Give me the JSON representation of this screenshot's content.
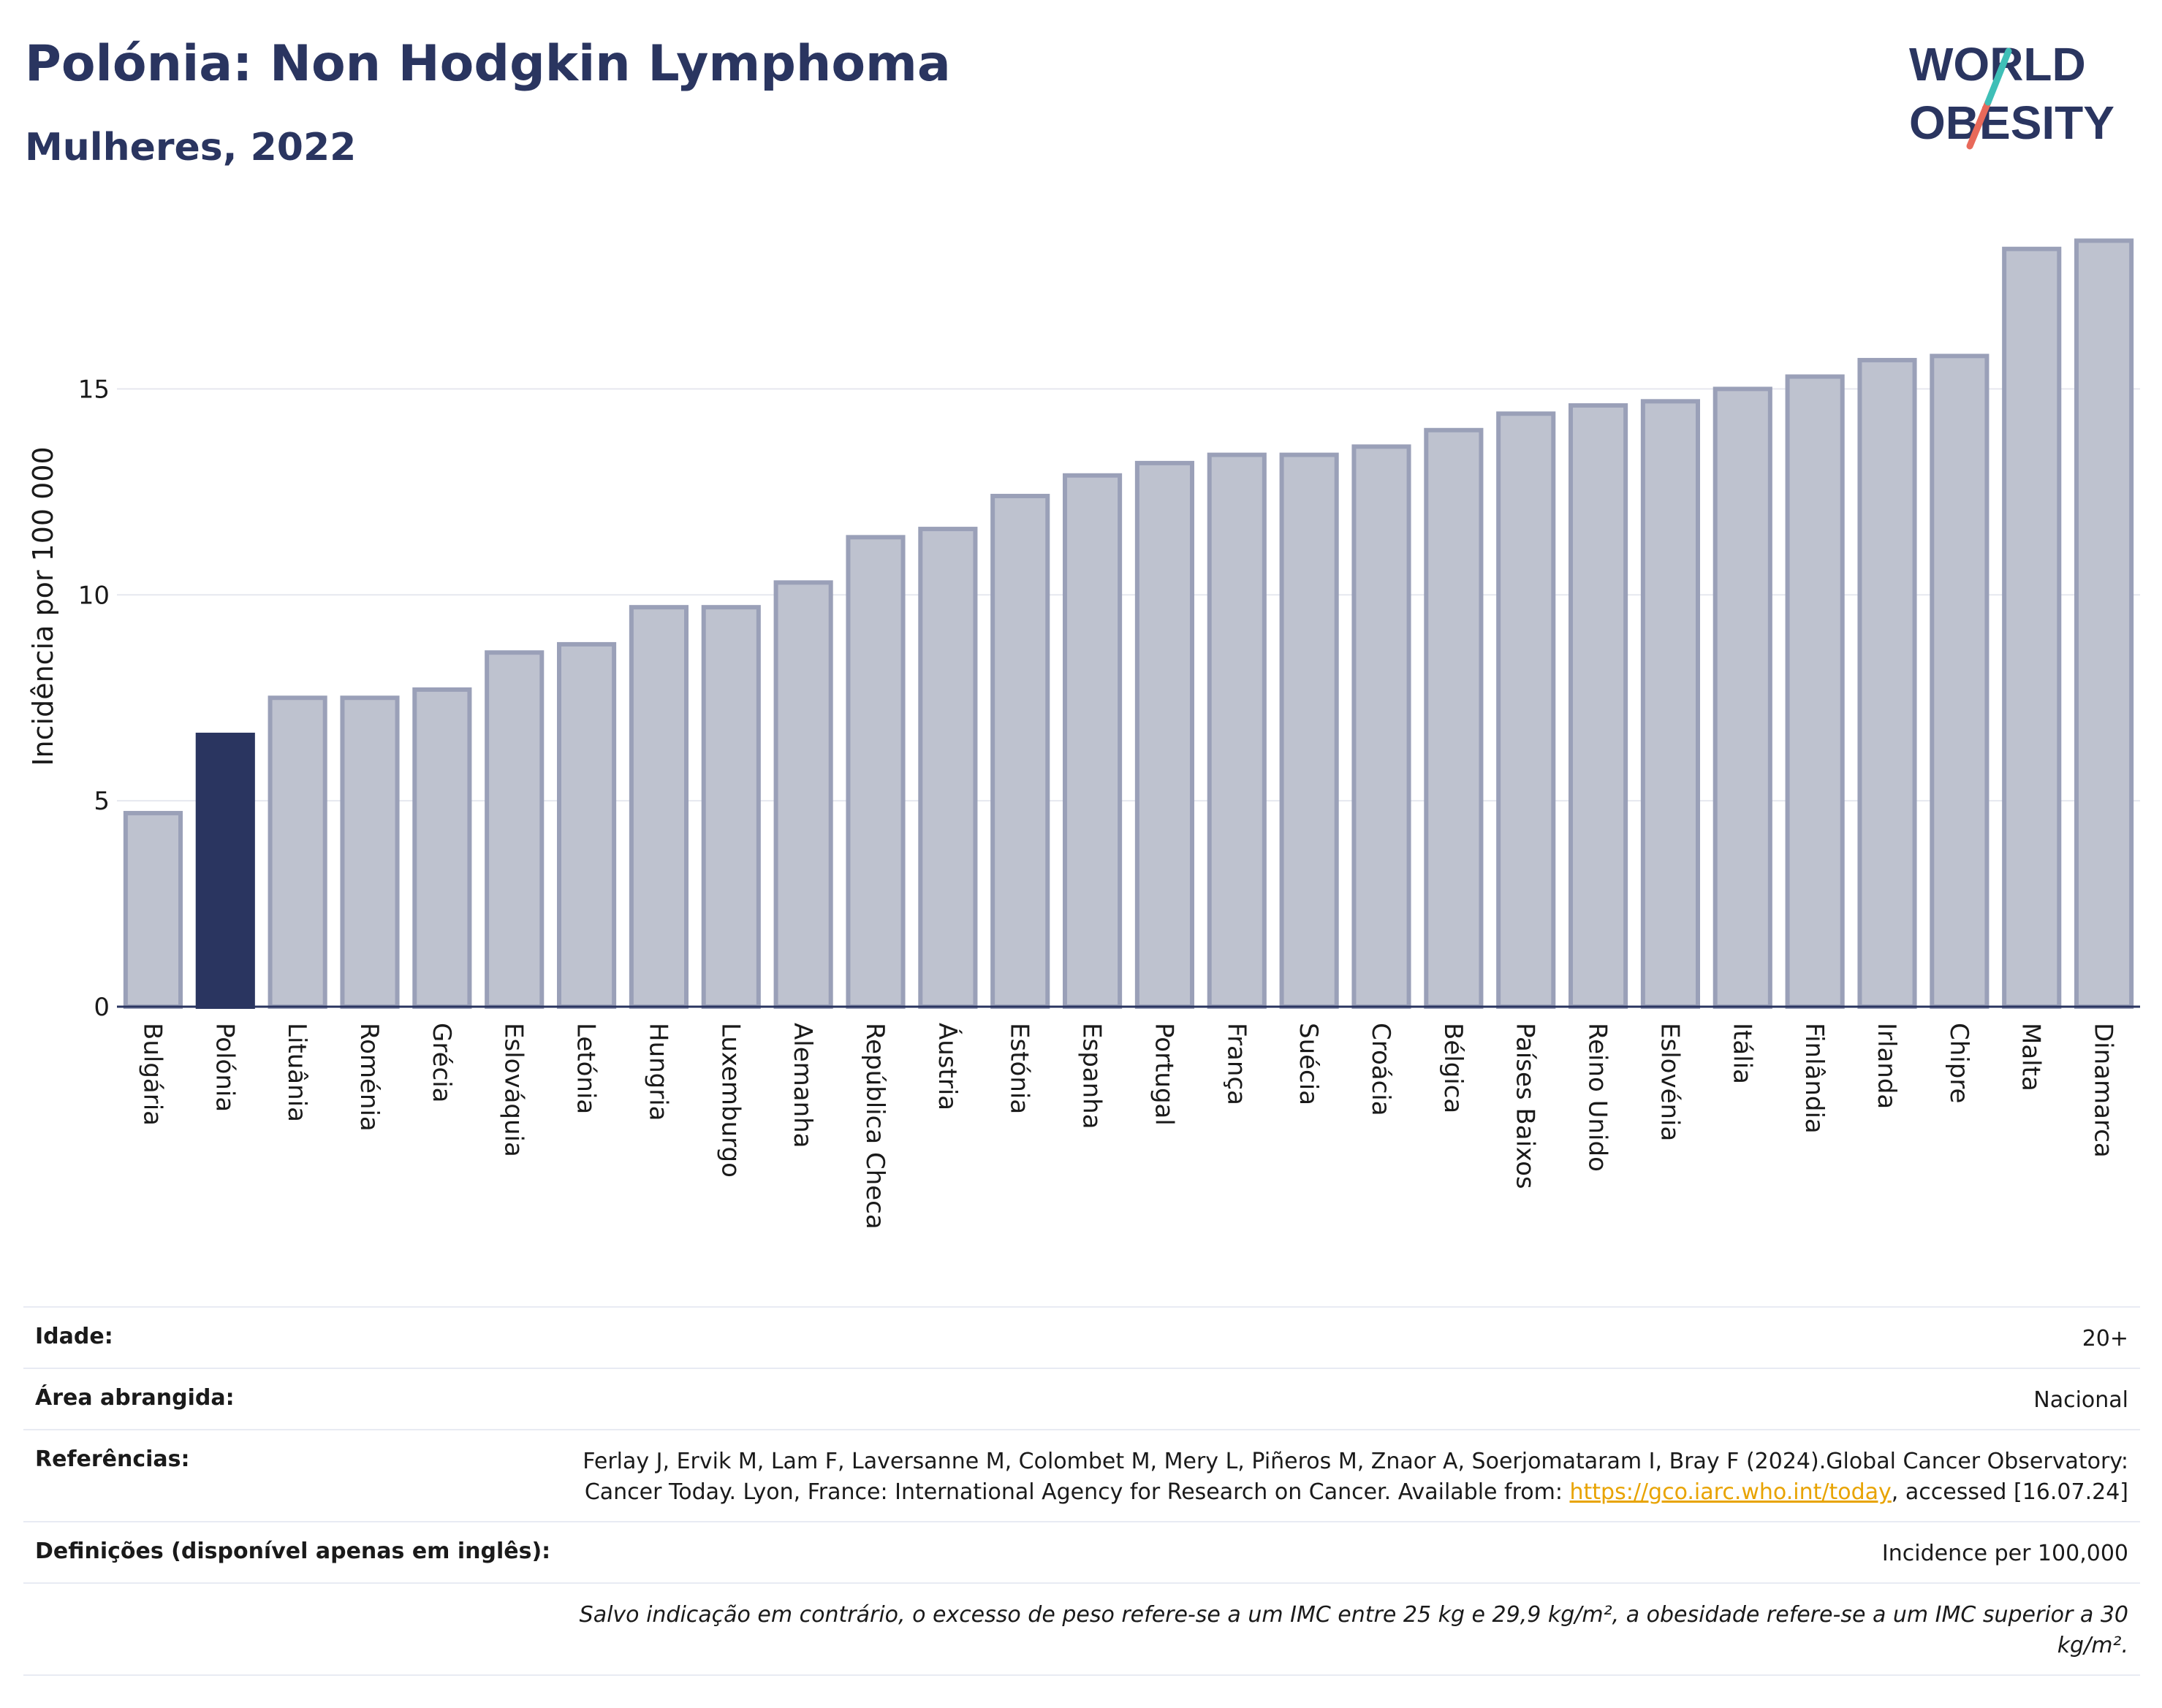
{
  "header": {
    "title": "Polónia: Non Hodgkin Lymphoma",
    "subtitle": "Mulheres, 2022"
  },
  "logo": {
    "line1": "WORLD",
    "line2": "OBESITY"
  },
  "chart_data": {
    "type": "bar",
    "title": "Polónia: Non Hodgkin Lymphoma",
    "subtitle": "Mulheres, 2022",
    "xlabel": "",
    "ylabel": "Incidência por 100 000",
    "ylim": [
      0,
      19.3
    ],
    "yticks": [
      0,
      5,
      10,
      15
    ],
    "grid": true,
    "highlight": "Polónia",
    "colors": {
      "default": "#bec2cf",
      "default_stroke": "#9aa0b8",
      "highlight": "#2a3560"
    },
    "categories": [
      "Bulgária",
      "Polónia",
      "Lituânia",
      "Roménia",
      "Grécia",
      "Eslováquia",
      "Letónia",
      "Hungria",
      "Luxemburgo",
      "Alemanha",
      "República Checa",
      "Áustria",
      "Estónia",
      "Espanha",
      "Portugal",
      "França",
      "Suécia",
      "Croácia",
      "Bélgica",
      "Países Baixos",
      "Reino Unido",
      "Eslovénia",
      "Itália",
      "Finlândia",
      "Irlanda",
      "Chipre",
      "Malta",
      "Dinamarca"
    ],
    "values": [
      4.7,
      6.6,
      7.5,
      7.5,
      7.7,
      8.6,
      8.8,
      9.7,
      9.7,
      10.3,
      11.4,
      11.6,
      12.4,
      12.9,
      13.2,
      13.4,
      13.4,
      13.6,
      14.0,
      14.4,
      14.6,
      14.7,
      15.0,
      15.3,
      15.7,
      15.8,
      18.4,
      18.6
    ]
  },
  "meta": {
    "age_label": "Idade:",
    "age_value": "20+",
    "area_label": "Área abrangida:",
    "area_value": "Nacional",
    "refs_label": "Referências:",
    "refs_text_1": "Ferlay J, Ervik M, Lam F, Laversanne M, Colombet M, Mery L, Piñeros M, Znaor A, Soerjomataram I, Bray F (2024).Global Cancer Observatory: Cancer Today. Lyon, France: International Agency for Research on Cancer. Available from: ",
    "refs_link": "https://gco.iarc.who.int/today",
    "refs_text_2": ", accessed [16.07.24]",
    "defs_label": "Definições (disponível apenas em inglês):",
    "defs_value": "Incidence per 100,000",
    "note": "Salvo indicação em contrário, o excesso de peso refere-se a um IMC entre 25 kg e 29,9 kg/m², a obesidade refere-se a um IMC superior a 30 kg/m²."
  }
}
